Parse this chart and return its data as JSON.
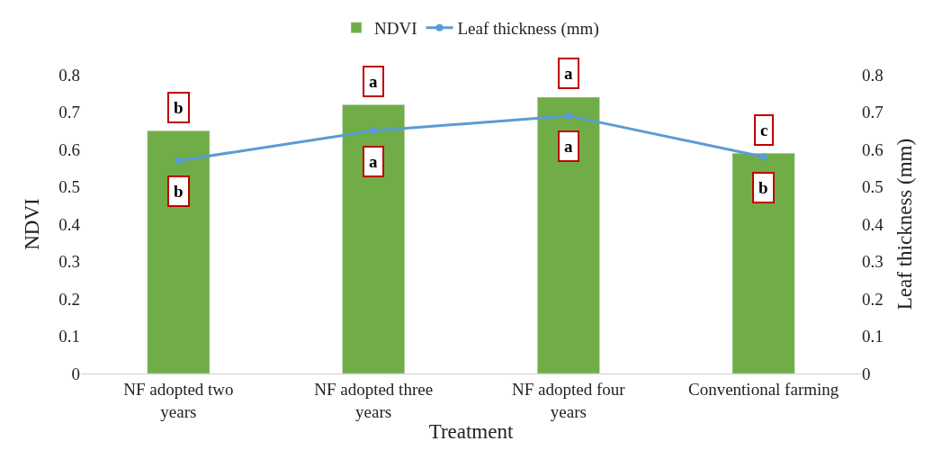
{
  "chart_data": {
    "type": "bar",
    "xlabel": "Treatment",
    "ylabel": "NDVI",
    "y2label": "Leaf thickness (mm)",
    "categories": [
      "NF adopted two years",
      "NF adopted three years",
      "NF adopted four years",
      "Conventional farming"
    ],
    "series": [
      {
        "name": "NDVI",
        "color": "#70ad47",
        "values": [
          0.65,
          0.72,
          0.74,
          0.59
        ]
      },
      {
        "name": "Leaf thickness (mm)",
        "type": "line",
        "axis": "y2",
        "color": "#5b9bd5",
        "marker": "circle",
        "values": [
          0.57,
          0.65,
          0.69,
          0.58
        ]
      }
    ],
    "ylim": [
      0,
      0.8
    ],
    "yticks": [
      0,
      0.1,
      0.2,
      0.3,
      0.4,
      0.5,
      0.6,
      0.7,
      0.8
    ],
    "y2lim": [
      0,
      0.8
    ],
    "y2ticks": [
      0,
      0.1,
      0.2,
      0.3,
      0.4,
      0.5,
      0.6,
      0.7,
      0.8
    ],
    "legend": "top",
    "annotations": [
      {
        "text": "b",
        "x": "NF adopted two years",
        "y": 0.65
      },
      {
        "text": "a",
        "x": "NF adopted three years",
        "y": 0.72
      },
      {
        "text": "a",
        "x": "NF adopted four years",
        "y": 0.74
      },
      {
        "text": "c",
        "x": "Conventional farming",
        "y": 0.59
      },
      {
        "text": "b",
        "x": "NF adopted two years",
        "y": 0.57
      },
      {
        "text": "a",
        "x": "NF adopted three years",
        "y": 0.65
      },
      {
        "text": "a",
        "x": "NF adopted four years",
        "y": 0.69
      },
      {
        "text": "b",
        "x": "Conventional farming",
        "y": 0.58
      }
    ]
  }
}
